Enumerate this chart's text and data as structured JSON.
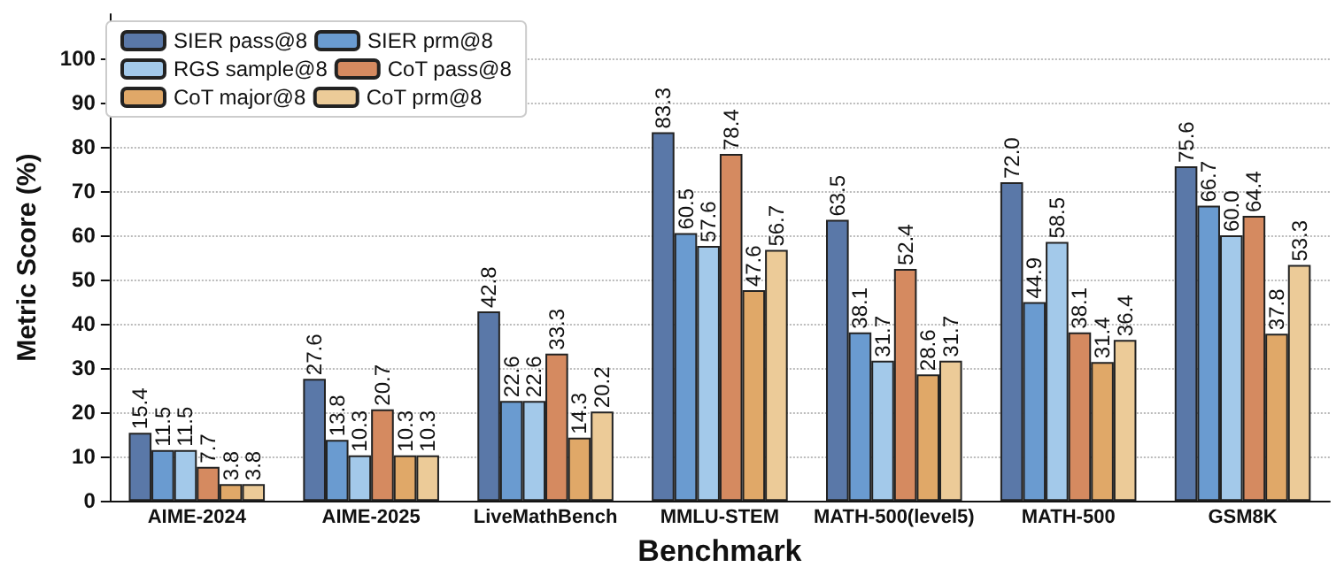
{
  "chart_data": {
    "type": "bar",
    "xlabel": "Benchmark",
    "ylabel": "Metric Score (%)",
    "categories": [
      "AIME-2024",
      "AIME-2025",
      "LiveMathBench",
      "MMLU-STEM",
      "MATH-500(level5)",
      "MATH-500",
      "GSM8K"
    ],
    "series": [
      {
        "name": "SIER pass@8",
        "color": "#5a78a8",
        "values": [
          15.4,
          27.6,
          42.8,
          83.3,
          63.5,
          72.0,
          75.6
        ],
        "value_labels": [
          "15.4",
          "27.6",
          "42.8",
          "83.3",
          "63.5",
          "72.0",
          "75.6"
        ]
      },
      {
        "name": "SIER prm@8",
        "color": "#6a9bd0",
        "values": [
          11.5,
          13.8,
          22.6,
          60.5,
          38.1,
          44.9,
          66.7
        ],
        "value_labels": [
          "11.5",
          "13.8",
          "22.6",
          "60.5",
          "38.1",
          "44.9",
          "66.7"
        ]
      },
      {
        "name": "RGS sample@8",
        "color": "#a3c9ea",
        "values": [
          11.5,
          10.3,
          22.6,
          57.6,
          31.7,
          58.5,
          60.0
        ],
        "value_labels": [
          "11.5",
          "10.3",
          "22.6",
          "57.6",
          "31.7",
          "58.5",
          "60.0"
        ]
      },
      {
        "name": "CoT pass@8",
        "color": "#d58a60",
        "values": [
          7.7,
          20.7,
          33.3,
          78.4,
          52.4,
          38.1,
          64.4
        ],
        "value_labels": [
          "7.7",
          "20.7",
          "33.3",
          "78.4",
          "52.4",
          "38.1",
          "64.4"
        ]
      },
      {
        "name": "CoT major@8",
        "color": "#e0a868",
        "values": [
          3.8,
          10.3,
          14.3,
          47.6,
          28.6,
          31.4,
          37.8
        ],
        "value_labels": [
          "3.8",
          "10.3",
          "14.3",
          "47.6",
          "28.6",
          "31.4",
          "37.8"
        ]
      },
      {
        "name": "CoT prm@8",
        "color": "#eccb98",
        "values": [
          3.8,
          10.3,
          20.2,
          56.7,
          31.7,
          36.4,
          53.3
        ],
        "value_labels": [
          "3.8",
          "10.3",
          "20.2",
          "56.7",
          "31.7",
          "36.4",
          "53.3"
        ]
      }
    ],
    "ylim": [
      0,
      110
    ],
    "yticks": [
      0,
      10,
      20,
      30,
      40,
      50,
      60,
      70,
      80,
      90,
      100
    ],
    "grid": "y",
    "legend": "top left"
  }
}
